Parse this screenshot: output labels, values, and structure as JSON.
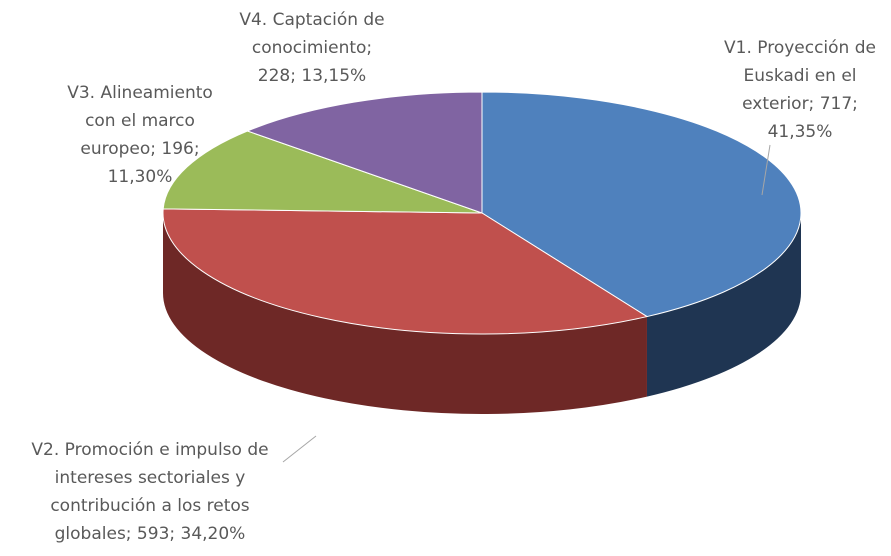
{
  "chart_data": {
    "type": "pie3d",
    "values": [
      717,
      593,
      196,
      228
    ],
    "value_labels": [
      [
        "V1. Proyección de",
        "Euskadi en el",
        "exterior; 717;",
        "41,35%"
      ],
      [
        "V2. Promoción e impulso de",
        "intereses sectoriales y",
        "contribución a los retos",
        "globales; 593; 34,20%"
      ],
      [
        "V3. Alineamiento",
        "con el marco",
        "europeo; 196;",
        "11,30%"
      ],
      [
        "V4. Captación de",
        "conocimiento;",
        "228; 13,15%"
      ]
    ],
    "colors": [
      "#4f81bd",
      "#c0504d",
      "#9bbb59",
      "#8064a2"
    ],
    "side_colors": [
      "#1f3552",
      "#6e2826",
      "#5b7232",
      "#4b3a61"
    ]
  }
}
